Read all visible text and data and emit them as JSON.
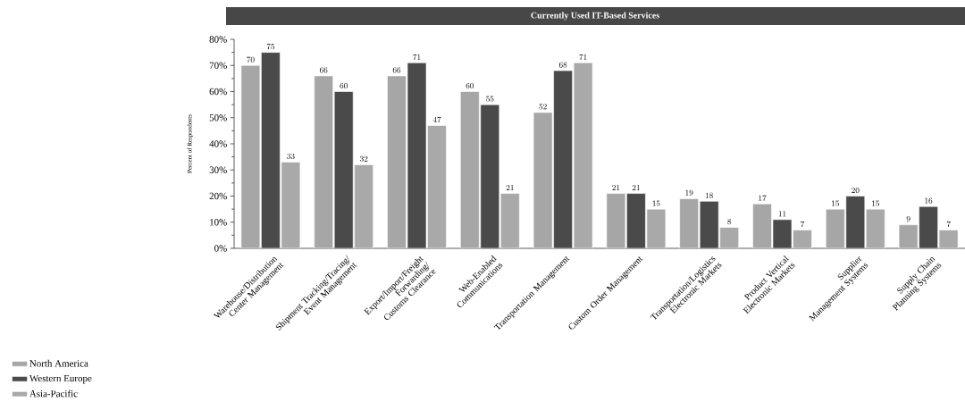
{
  "chart_data": {
    "type": "bar",
    "title": "Currently Used IT-Based Services",
    "ylabel": "Percent of Respondents",
    "categories": [
      "Warehouse/Distribution Center Management",
      "Shipment Tracking/Tracing/ Event Management",
      "Export/Import/Freight Forwarding/ Customs Clearance",
      "Web-Enabled Communications",
      "Transportation Management",
      "Custom Order Management",
      "Transportation/Logistics Electronic Markets",
      "Product Vertical Electronic Markets",
      "Supplier Management Systems",
      "Supply Chain Planning Systems"
    ],
    "series": [
      {
        "name": "North America",
        "color": "#a6a6a6",
        "values": [
          70,
          66,
          66,
          60,
          52,
          21,
          19,
          17,
          15,
          9
        ]
      },
      {
        "name": "Western Europe",
        "color": "#4a4a4a",
        "values": [
          75,
          60,
          71,
          55,
          68,
          21,
          18,
          11,
          20,
          16
        ]
      },
      {
        "name": "Asia-Pacific",
        "color": "#a9a9a9",
        "values": [
          33,
          32,
          47,
          21,
          71,
          15,
          8,
          7,
          15,
          7
        ]
      }
    ],
    "ylim": [
      0,
      80
    ],
    "yticks": [
      {
        "value": 0,
        "label": "0%"
      },
      {
        "value": 10,
        "label": "10%"
      },
      {
        "value": 20,
        "label": "20%"
      },
      {
        "value": 30,
        "label": "30%"
      },
      {
        "value": 40,
        "label": "40%"
      },
      {
        "value": 50,
        "label": "50%"
      },
      {
        "value": 60,
        "label": "60%"
      },
      {
        "value": 70,
        "label": "70%"
      },
      {
        "value": 80,
        "label": "80%"
      }
    ],
    "data_labels": true,
    "legend": "bottom left",
    "grid": false
  }
}
